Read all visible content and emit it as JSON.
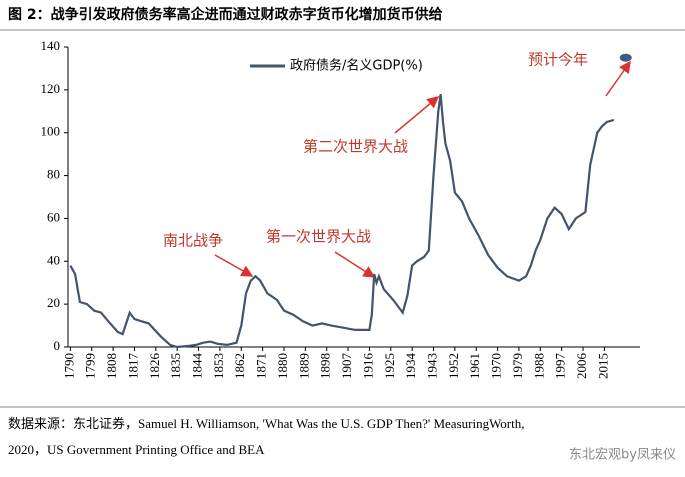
{
  "chart_data": {
    "type": "line",
    "title": "图 2：战争引发政府债务率高企进而通过财政赤字货币化增加货币供给",
    "series": [
      {
        "name": "政府债务/名义GDP(%)",
        "color": "#44546a",
        "x": [
          1790,
          1792,
          1794,
          1797,
          1800,
          1803,
          1806,
          1810,
          1812,
          1815,
          1817,
          1820,
          1823,
          1828,
          1832,
          1835,
          1840,
          1843,
          1846,
          1849,
          1852,
          1856,
          1860,
          1862,
          1864,
          1866,
          1868,
          1870,
          1873,
          1877,
          1880,
          1884,
          1888,
          1892,
          1896,
          1900,
          1905,
          1910,
          1916,
          1917,
          1918,
          1919,
          1920,
          1922,
          1926,
          1930,
          1932,
          1934,
          1936,
          1939,
          1941,
          1943,
          1945,
          1946,
          1947,
          1948,
          1950,
          1952,
          1955,
          1958,
          1962,
          1966,
          1970,
          1974,
          1979,
          1982,
          1984,
          1986,
          1988,
          1991,
          1994,
          1997,
          2000,
          2003,
          2007,
          2009,
          2012,
          2014,
          2016,
          2019
        ],
        "values": [
          38,
          34,
          21,
          20,
          17,
          16,
          12,
          7,
          6,
          16,
          13,
          12,
          11,
          5,
          1,
          0,
          0.5,
          1,
          2,
          2.5,
          1.5,
          1,
          2,
          10,
          25,
          31,
          33,
          31,
          25,
          22,
          17,
          15,
          12,
          10,
          11,
          10,
          9,
          8,
          8,
          15,
          34,
          30,
          33,
          27,
          22,
          16,
          24,
          38,
          40,
          42,
          45,
          80,
          110,
          118,
          105,
          95,
          87,
          72,
          68,
          60,
          52,
          43,
          37,
          33,
          31,
          33,
          38,
          45,
          50,
          60,
          65,
          62,
          55,
          60,
          63,
          85,
          100,
          103,
          105,
          106
        ]
      }
    ],
    "forecast": {
      "x": 2024,
      "y": 135
    },
    "annotations": [
      "南北战争",
      "第一次世界大战",
      "第二次世界大战",
      "预计今年"
    ],
    "xlim": [
      1789,
      2030
    ],
    "xticks": [
      1790,
      1799,
      1808,
      1817,
      1826,
      1835,
      1844,
      1853,
      1862,
      1871,
      1880,
      1889,
      1898,
      1907,
      1916,
      1925,
      1934,
      1943,
      1952,
      1961,
      1970,
      1979,
      1988,
      1997,
      2006,
      2015
    ],
    "ylim": [
      0,
      140
    ],
    "yticks": [
      0,
      20,
      40,
      60,
      80,
      100,
      120,
      140
    ],
    "source": [
      "数据来源：东北证券，Samuel H. Williamson, 'What Was the U.S. GDP Then?' MeasuringWorth,",
      "2020，US Government Printing Office and BEA"
    ],
    "watermark": "东北宏观by凤来仪"
  }
}
